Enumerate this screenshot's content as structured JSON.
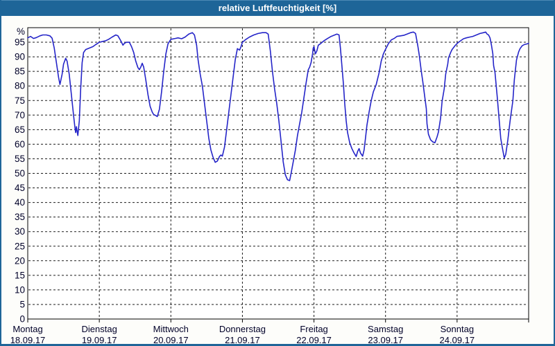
{
  "window": {
    "title": "relative Luftfeuchtigkeit [%]"
  },
  "colors": {
    "titlebar_bg": "#1e6598",
    "titlebar_text": "#ffffff",
    "plot_bg": "#ffffff",
    "frame": "#000000",
    "grid": "#1a1a1a",
    "label_text": "#000028",
    "line": "#2424c8"
  },
  "chart_data": {
    "type": "line",
    "title": "relative Luftfeuchtigkeit [%]",
    "ylabel": "%",
    "xlabel": "",
    "xlim": [
      0,
      7
    ],
    "ylim": [
      0,
      100
    ],
    "grid": "dashed, every 5 on y, every day on x",
    "legend_position": "none",
    "y_ticks": [
      0,
      5,
      10,
      15,
      20,
      25,
      30,
      35,
      40,
      45,
      50,
      55,
      60,
      65,
      70,
      75,
      80,
      85,
      90,
      95
    ],
    "y_unit_label": "%",
    "x_ticks": [
      {
        "pos": 0,
        "day": "Montag",
        "date": "18.09.17"
      },
      {
        "pos": 1,
        "day": "Dienstag",
        "date": "19.09.17"
      },
      {
        "pos": 2,
        "day": "Mittwoch",
        "date": "20.09.17"
      },
      {
        "pos": 3,
        "day": "Donnerstag",
        "date": "21.09.17"
      },
      {
        "pos": 4,
        "day": "Freitag",
        "date": "22.09.17"
      },
      {
        "pos": 5,
        "day": "Samstag",
        "date": "23.09.17"
      },
      {
        "pos": 6,
        "day": "Sonntag",
        "date": "24.09.17"
      }
    ],
    "series": [
      {
        "name": "relative Luftfeuchtigkeit",
        "color": "#2424c8",
        "points": [
          [
            0.0,
            96.5
          ],
          [
            0.04,
            97.0
          ],
          [
            0.08,
            96.3
          ],
          [
            0.12,
            96.6
          ],
          [
            0.17,
            97.2
          ],
          [
            0.21,
            97.5
          ],
          [
            0.26,
            97.5
          ],
          [
            0.31,
            97.2
          ],
          [
            0.34,
            96.4
          ],
          [
            0.37,
            93.0
          ],
          [
            0.4,
            88.0
          ],
          [
            0.43,
            83.0
          ],
          [
            0.45,
            80.5
          ],
          [
            0.48,
            84.0
          ],
          [
            0.5,
            87.5
          ],
          [
            0.53,
            89.5
          ],
          [
            0.55,
            88.5
          ],
          [
            0.58,
            84.0
          ],
          [
            0.61,
            77.0
          ],
          [
            0.64,
            70.0
          ],
          [
            0.66,
            65.5
          ],
          [
            0.67,
            64.0
          ],
          [
            0.68,
            66.0
          ],
          [
            0.7,
            63.0
          ],
          [
            0.72,
            68.0
          ],
          [
            0.74,
            79.0
          ],
          [
            0.76,
            88.0
          ],
          [
            0.78,
            91.5
          ],
          [
            0.81,
            92.5
          ],
          [
            0.86,
            93.0
          ],
          [
            0.91,
            93.5
          ],
          [
            0.95,
            94.2
          ],
          [
            1.0,
            95.0
          ],
          [
            1.05,
            95.3
          ],
          [
            1.09,
            95.5
          ],
          [
            1.13,
            96.0
          ],
          [
            1.18,
            96.8
          ],
          [
            1.23,
            97.5
          ],
          [
            1.26,
            97.2
          ],
          [
            1.3,
            95.5
          ],
          [
            1.33,
            94.0
          ],
          [
            1.35,
            94.6
          ],
          [
            1.38,
            95.0
          ],
          [
            1.42,
            95.0
          ],
          [
            1.45,
            93.5
          ],
          [
            1.48,
            91.5
          ],
          [
            1.51,
            88.5
          ],
          [
            1.54,
            86.3
          ],
          [
            1.56,
            85.6
          ],
          [
            1.58,
            86.5
          ],
          [
            1.6,
            87.8
          ],
          [
            1.62,
            86.5
          ],
          [
            1.65,
            82.0
          ],
          [
            1.68,
            77.0
          ],
          [
            1.71,
            73.0
          ],
          [
            1.74,
            71.0
          ],
          [
            1.76,
            70.2
          ],
          [
            1.79,
            69.8
          ],
          [
            1.81,
            69.5
          ],
          [
            1.84,
            72.0
          ],
          [
            1.87,
            78.0
          ],
          [
            1.9,
            85.0
          ],
          [
            1.93,
            91.0
          ],
          [
            1.96,
            94.5
          ],
          [
            2.0,
            96.0
          ],
          [
            2.06,
            96.3
          ],
          [
            2.1,
            96.5
          ],
          [
            2.15,
            96.2
          ],
          [
            2.2,
            96.8
          ],
          [
            2.25,
            97.8
          ],
          [
            2.3,
            98.3
          ],
          [
            2.33,
            97.5
          ],
          [
            2.36,
            94.0
          ],
          [
            2.38,
            89.0
          ],
          [
            2.41,
            84.0
          ],
          [
            2.44,
            80.0
          ],
          [
            2.47,
            74.0
          ],
          [
            2.5,
            68.0
          ],
          [
            2.53,
            62.0
          ],
          [
            2.56,
            58.0
          ],
          [
            2.59,
            55.5
          ],
          [
            2.62,
            53.8
          ],
          [
            2.65,
            54.2
          ],
          [
            2.68,
            55.8
          ],
          [
            2.7,
            56.3
          ],
          [
            2.72,
            55.9
          ],
          [
            2.75,
            59.0
          ],
          [
            2.78,
            65.0
          ],
          [
            2.81,
            71.0
          ],
          [
            2.84,
            77.0
          ],
          [
            2.87,
            83.0
          ],
          [
            2.9,
            89.0
          ],
          [
            2.93,
            92.8
          ],
          [
            2.96,
            92.3
          ],
          [
            2.98,
            93.5
          ],
          [
            3.0,
            95.0
          ],
          [
            3.05,
            96.0
          ],
          [
            3.1,
            96.8
          ],
          [
            3.16,
            97.5
          ],
          [
            3.22,
            98.0
          ],
          [
            3.28,
            98.3
          ],
          [
            3.33,
            98.3
          ],
          [
            3.36,
            97.8
          ],
          [
            3.39,
            92.0
          ],
          [
            3.42,
            85.0
          ],
          [
            3.45,
            79.0
          ],
          [
            3.48,
            74.0
          ],
          [
            3.51,
            68.0
          ],
          [
            3.54,
            61.0
          ],
          [
            3.57,
            54.0
          ],
          [
            3.6,
            49.5
          ],
          [
            3.63,
            47.8
          ],
          [
            3.66,
            47.5
          ],
          [
            3.68,
            50.0
          ],
          [
            3.71,
            54.0
          ],
          [
            3.74,
            58.0
          ],
          [
            3.77,
            63.0
          ],
          [
            3.8,
            67.0
          ],
          [
            3.83,
            71.0
          ],
          [
            3.86,
            76.0
          ],
          [
            3.89,
            81.0
          ],
          [
            3.92,
            85.5
          ],
          [
            3.94,
            86.5
          ],
          [
            3.96,
            88.0
          ],
          [
            3.98,
            91.0
          ],
          [
            3.99,
            93.0
          ],
          [
            4.0,
            93.5
          ],
          [
            4.02,
            91.0
          ],
          [
            4.04,
            92.0
          ],
          [
            4.06,
            94.0
          ],
          [
            4.09,
            94.5
          ],
          [
            4.14,
            95.5
          ],
          [
            4.19,
            96.3
          ],
          [
            4.24,
            97.0
          ],
          [
            4.29,
            97.5
          ],
          [
            4.32,
            97.8
          ],
          [
            4.35,
            97.5
          ],
          [
            4.37,
            93.0
          ],
          [
            4.39,
            87.0
          ],
          [
            4.41,
            81.0
          ],
          [
            4.43,
            74.0
          ],
          [
            4.45,
            68.0
          ],
          [
            4.47,
            64.0
          ],
          [
            4.5,
            60.5
          ],
          [
            4.53,
            58.5
          ],
          [
            4.56,
            57.0
          ],
          [
            4.59,
            55.8
          ],
          [
            4.61,
            57.5
          ],
          [
            4.63,
            58.5
          ],
          [
            4.65,
            57.0
          ],
          [
            4.68,
            55.9
          ],
          [
            4.7,
            58.0
          ],
          [
            4.72,
            62.0
          ],
          [
            4.74,
            66.5
          ],
          [
            4.77,
            71.0
          ],
          [
            4.8,
            75.0
          ],
          [
            4.83,
            78.0
          ],
          [
            4.87,
            80.5
          ],
          [
            4.91,
            84.5
          ],
          [
            4.94,
            88.5
          ],
          [
            4.97,
            91.0
          ],
          [
            5.0,
            92.6
          ],
          [
            5.04,
            94.5
          ],
          [
            5.08,
            95.8
          ],
          [
            5.12,
            96.3
          ],
          [
            5.16,
            97.0
          ],
          [
            5.21,
            97.2
          ],
          [
            5.26,
            97.4
          ],
          [
            5.3,
            97.8
          ],
          [
            5.35,
            98.3
          ],
          [
            5.39,
            98.5
          ],
          [
            5.42,
            98.0
          ],
          [
            5.45,
            94.0
          ],
          [
            5.47,
            90.8
          ],
          [
            5.5,
            85.0
          ],
          [
            5.52,
            81.7
          ],
          [
            5.55,
            76.0
          ],
          [
            5.57,
            72.2
          ],
          [
            5.58,
            67.0
          ],
          [
            5.6,
            63.4
          ],
          [
            5.63,
            61.5
          ],
          [
            5.66,
            60.8
          ],
          [
            5.69,
            60.5
          ],
          [
            5.72,
            62.5
          ],
          [
            5.74,
            64.2
          ],
          [
            5.77,
            69.0
          ],
          [
            5.79,
            74.6
          ],
          [
            5.82,
            79.0
          ],
          [
            5.84,
            84.0
          ],
          [
            5.87,
            87.5
          ],
          [
            5.88,
            89.6
          ],
          [
            5.91,
            91.5
          ],
          [
            5.93,
            92.5
          ],
          [
            5.97,
            93.8
          ],
          [
            6.01,
            94.8
          ],
          [
            6.05,
            95.5
          ],
          [
            6.09,
            96.2
          ],
          [
            6.13,
            96.5
          ],
          [
            6.18,
            96.8
          ],
          [
            6.22,
            97.0
          ],
          [
            6.27,
            97.5
          ],
          [
            6.32,
            98.0
          ],
          [
            6.37,
            98.3
          ],
          [
            6.4,
            98.5
          ],
          [
            6.42,
            97.8
          ],
          [
            6.44,
            97.5
          ],
          [
            6.46,
            96.5
          ],
          [
            6.48,
            94.0
          ],
          [
            6.5,
            91.0
          ],
          [
            6.51,
            87.0
          ],
          [
            6.53,
            84.6
          ],
          [
            6.56,
            76.6
          ],
          [
            6.59,
            67.9
          ],
          [
            6.61,
            62.0
          ],
          [
            6.63,
            59.2
          ],
          [
            6.65,
            56.5
          ],
          [
            6.66,
            55.3
          ],
          [
            6.68,
            56.5
          ],
          [
            6.71,
            61.6
          ],
          [
            6.74,
            67.9
          ],
          [
            6.78,
            75.0
          ],
          [
            6.8,
            82.2
          ],
          [
            6.83,
            88.9
          ],
          [
            6.86,
            91.7
          ],
          [
            6.88,
            92.8
          ],
          [
            6.91,
            93.8
          ],
          [
            6.94,
            94.2
          ],
          [
            6.97,
            94.4
          ],
          [
            7.0,
            94.6
          ]
        ]
      }
    ]
  }
}
